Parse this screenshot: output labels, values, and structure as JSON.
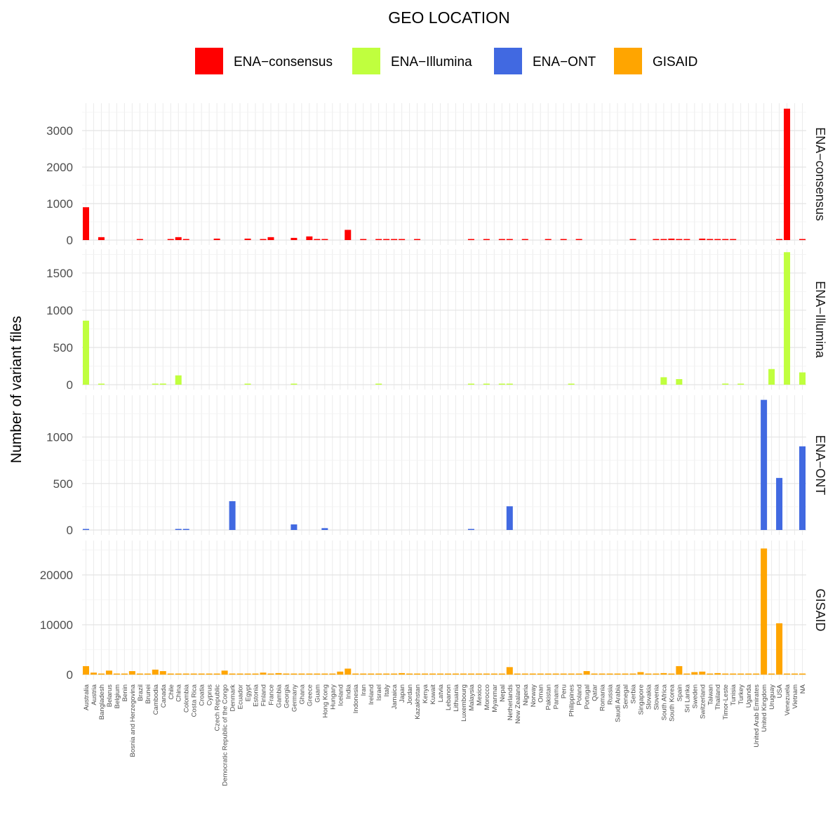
{
  "chart_data": {
    "type": "bar",
    "title": "GEO LOCATION",
    "ylabel": "Number of variant files",
    "xlabel": "",
    "legend_position": "top",
    "grid": true,
    "categories": [
      "Australia",
      "Austria",
      "Bangladesh",
      "Belarus",
      "Belgium",
      "Benin",
      "Bosnia and Herzegovina",
      "Brazil",
      "Brunei",
      "Cambodia",
      "Canada",
      "Chile",
      "China",
      "Colombia",
      "Costa Rica",
      "Croatia",
      "Cyprus",
      "Czech Republic",
      "Democratic Republic of the Congo",
      "Denmark",
      "Ecuador",
      "Egypt",
      "Estonia",
      "Finland",
      "France",
      "Gambia",
      "Georgia",
      "Germany",
      "Ghana",
      "Greece",
      "Guam",
      "Hong Kong",
      "Hungary",
      "Iceland",
      "India",
      "Indonesia",
      "Iran",
      "Ireland",
      "Israel",
      "Italy",
      "Jamaica",
      "Japan",
      "Jordan",
      "Kazakhstan",
      "Kenya",
      "Kuwait",
      "Latvia",
      "Lebanon",
      "Lithuania",
      "Luxembourg",
      "Malaysia",
      "Mexico",
      "Morocco",
      "Myanmar",
      "Nepal",
      "Netherlands",
      "New Zealand",
      "Nigeria",
      "Norway",
      "Oman",
      "Pakistan",
      "Panama",
      "Peru",
      "Philippines",
      "Poland",
      "Portugal",
      "Qatar",
      "Romania",
      "Russia",
      "Saudi Arabia",
      "Senegal",
      "Serbia",
      "Singapore",
      "Slovakia",
      "Slovenia",
      "South Africa",
      "South Korea",
      "Spain",
      "Sri Lanka",
      "Sweden",
      "Switzerland",
      "Taiwan",
      "Thailand",
      "Timor-Leste",
      "Tunisia",
      "Turkey",
      "Uganda",
      "United Arab Emirates",
      "United Kingdom",
      "Uruguay",
      "USA",
      "Venezuela",
      "Vietnam",
      "NA"
    ],
    "series": [
      {
        "name": "ENA−consensus",
        "color": "#ff0000",
        "ticks": [
          0,
          1000,
          2000,
          3000
        ],
        "ylim": [
          0,
          3750
        ],
        "values": [
          900,
          0,
          80,
          0,
          0,
          0,
          0,
          15,
          0,
          0,
          0,
          25,
          80,
          15,
          0,
          0,
          0,
          40,
          0,
          0,
          0,
          40,
          0,
          10,
          80,
          0,
          0,
          60,
          0,
          100,
          25,
          20,
          0,
          0,
          280,
          0,
          15,
          0,
          10,
          25,
          25,
          25,
          0,
          20,
          0,
          0,
          0,
          0,
          0,
          0,
          15,
          0,
          15,
          0,
          15,
          15,
          0,
          15,
          0,
          0,
          15,
          0,
          15,
          0,
          15,
          0,
          0,
          0,
          0,
          0,
          0,
          15,
          0,
          0,
          15,
          25,
          40,
          25,
          15,
          0,
          40,
          30,
          20,
          25,
          25,
          0,
          0,
          0,
          0,
          0,
          20,
          3600,
          0,
          15
        ]
      },
      {
        "name": "ENA−Illumina",
        "color": "#c0ff3e",
        "ticks": [
          0,
          500,
          1000,
          1500
        ],
        "ylim": [
          0,
          1820
        ],
        "values": [
          860,
          0,
          6,
          0,
          0,
          0,
          0,
          0,
          0,
          8,
          15,
          0,
          125,
          0,
          0,
          0,
          0,
          0,
          0,
          0,
          0,
          6,
          0,
          0,
          0,
          0,
          0,
          6,
          0,
          0,
          0,
          0,
          0,
          0,
          0,
          0,
          0,
          0,
          6,
          0,
          0,
          0,
          0,
          0,
          0,
          0,
          0,
          0,
          0,
          0,
          6,
          0,
          8,
          0,
          8,
          8,
          0,
          0,
          0,
          0,
          0,
          0,
          0,
          8,
          0,
          0,
          0,
          0,
          0,
          0,
          0,
          0,
          0,
          0,
          0,
          100,
          0,
          75,
          0,
          0,
          0,
          0,
          0,
          15,
          0,
          6,
          0,
          0,
          0,
          210,
          0,
          1780,
          0,
          165
        ]
      },
      {
        "name": "ENA−ONT",
        "color": "#4169e1",
        "ticks": [
          0,
          500,
          1000
        ],
        "ylim": [
          0,
          1450
        ],
        "values": [
          8,
          0,
          0,
          0,
          0,
          0,
          0,
          0,
          0,
          0,
          0,
          0,
          6,
          6,
          0,
          0,
          0,
          0,
          0,
          310,
          0,
          0,
          0,
          0,
          0,
          0,
          0,
          60,
          0,
          0,
          0,
          20,
          0,
          0,
          0,
          0,
          0,
          0,
          0,
          0,
          0,
          0,
          0,
          0,
          0,
          0,
          0,
          0,
          0,
          0,
          6,
          0,
          0,
          0,
          0,
          255,
          0,
          0,
          0,
          0,
          0,
          0,
          0,
          0,
          0,
          0,
          0,
          0,
          0,
          0,
          0,
          0,
          0,
          0,
          0,
          0,
          0,
          0,
          0,
          0,
          0,
          0,
          0,
          0,
          0,
          0,
          0,
          0,
          1400,
          0,
          560,
          0,
          0,
          900
        ]
      },
      {
        "name": "GISAID",
        "color": "#ffa500",
        "ticks": [
          0,
          10000,
          20000
        ],
        "ylim": [
          0,
          26900
        ],
        "values": [
          1700,
          400,
          100,
          800,
          100,
          100,
          700,
          100,
          100,
          1000,
          700,
          100,
          100,
          100,
          100,
          100,
          100,
          200,
          800,
          100,
          100,
          100,
          100,
          400,
          100,
          300,
          100,
          100,
          100,
          100,
          100,
          100,
          100,
          600,
          1200,
          100,
          100,
          100,
          100,
          100,
          100,
          300,
          100,
          100,
          100,
          100,
          100,
          100,
          200,
          100,
          100,
          100,
          100,
          100,
          100,
          1500,
          200,
          100,
          100,
          100,
          100,
          100,
          100,
          100,
          100,
          700,
          100,
          100,
          200,
          100,
          100,
          100,
          500,
          100,
          100,
          300,
          100,
          1700,
          100,
          500,
          600,
          100,
          300,
          100,
          100,
          100,
          100,
          100,
          25300,
          100,
          10300,
          100,
          100,
          100
        ]
      }
    ]
  }
}
